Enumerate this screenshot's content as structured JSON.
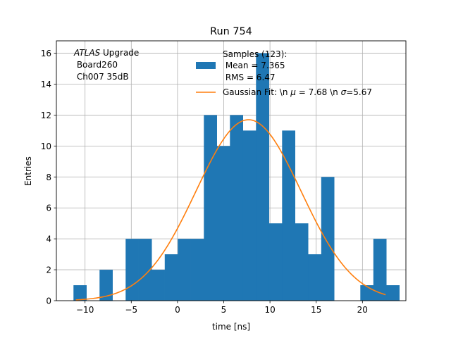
{
  "chart_data": {
    "type": "bar",
    "title": "Run 754",
    "xlabel": "time [ns]",
    "ylabel": "Entries",
    "xlim": [
      -13.1,
      24.7
    ],
    "ylim": [
      0,
      16.8
    ],
    "xticks": [
      -10,
      -5,
      0,
      5,
      10,
      15,
      20
    ],
    "xtick_labels": [
      "−10",
      "−5",
      "0",
      "5",
      "10",
      "15",
      "20"
    ],
    "yticks": [
      0,
      2,
      4,
      6,
      8,
      10,
      12,
      14,
      16
    ],
    "ytick_labels": [
      "0",
      "2",
      "4",
      "6",
      "8",
      "10",
      "12",
      "14",
      "16"
    ],
    "grid": true,
    "legend_position": "top-right",
    "annotation": {
      "line1_italic": "ATLAS",
      "line1_rest": " Upgrade",
      "line2": " Board260",
      "line3": " Ch007 35dB"
    },
    "histogram": {
      "name": "Samples (123):",
      "legend_lines": [
        "Samples (123):",
        " Mean = 7.365",
        " RMS = 6.47"
      ],
      "color": "#1f77b4",
      "bin_start": -11.25,
      "bin_width": 1.41,
      "counts": [
        1,
        0,
        2,
        0,
        4,
        4,
        2,
        3,
        4,
        4,
        12,
        10,
        12,
        11,
        16,
        5,
        11,
        5,
        3,
        8,
        0,
        0,
        1,
        4,
        1
      ]
    },
    "fit": {
      "legend_label_prefix": "Gaussian Fit: \\n ",
      "legend_mu_symbol": "μ",
      "legend_mu_text": " = 7.68 \\n ",
      "legend_sigma_symbol": "σ",
      "legend_sigma_text": "=5.67",
      "color": "#ff7f0e",
      "mu": 7.68,
      "sigma": 5.67,
      "amplitude": 11.7,
      "x_range": [
        -11.0,
        22.5
      ]
    }
  }
}
